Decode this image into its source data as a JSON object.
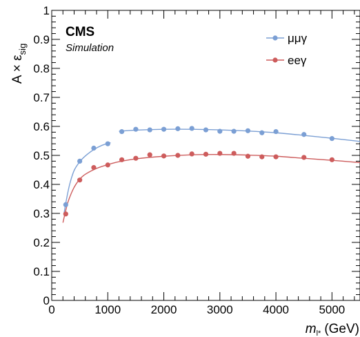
{
  "chart_data": {
    "type": "scatter",
    "experiment_label": "CMS",
    "sub_label": "Simulation",
    "ylabel": "A × ε",
    "ylabel_sub": "sig",
    "xlabel": "m",
    "xlabel_sub": "l*",
    "xlabel_unit": "(GeV)",
    "xlim": [
      0,
      5500
    ],
    "ylim": [
      0,
      1
    ],
    "x_ticks": [
      0,
      1000,
      2000,
      3000,
      4000,
      5000
    ],
    "y_ticks": [
      0,
      0.1,
      0.2,
      0.3,
      0.4,
      0.5,
      0.6,
      0.7,
      0.8,
      0.9,
      1
    ],
    "x_tick_labels": [
      "0",
      "1000",
      "2000",
      "3000",
      "4000",
      "5000"
    ],
    "y_tick_labels": [
      "0",
      "0.1",
      "0.2",
      "0.3",
      "0.4",
      "0.5",
      "0.6",
      "0.7",
      "0.8",
      "0.9",
      "1"
    ],
    "legend_position": "top-right",
    "series": [
      {
        "name": "μμγ",
        "color": "#7b9fd4",
        "points": [
          [
            250,
            0.33
          ],
          [
            500,
            0.48
          ],
          [
            750,
            0.525
          ],
          [
            1000,
            0.54
          ],
          [
            1250,
            0.582
          ],
          [
            1500,
            0.59
          ],
          [
            1750,
            0.588
          ],
          [
            2000,
            0.59
          ],
          [
            2250,
            0.592
          ],
          [
            2500,
            0.593
          ],
          [
            2750,
            0.588
          ],
          [
            3000,
            0.583
          ],
          [
            3250,
            0.583
          ],
          [
            3500,
            0.585
          ],
          [
            3750,
            0.578
          ],
          [
            4000,
            0.582
          ],
          [
            4500,
            0.572
          ],
          [
            5000,
            0.558
          ]
        ],
        "fit_segments": [
          [
            [
              220,
              0.3
            ],
            [
              260,
              0.345
            ],
            [
              320,
              0.4
            ],
            [
              400,
              0.448
            ],
            [
              500,
              0.478
            ],
            [
              600,
              0.498
            ],
            [
              750,
              0.52
            ],
            [
              900,
              0.535
            ],
            [
              1050,
              0.544
            ]
          ],
          [
            [
              1200,
              0.583
            ],
            [
              1500,
              0.587
            ],
            [
              2000,
              0.59
            ],
            [
              2500,
              0.59
            ],
            [
              3000,
              0.588
            ],
            [
              3500,
              0.584
            ],
            [
              4000,
              0.578
            ],
            [
              4500,
              0.569
            ],
            [
              5000,
              0.559
            ],
            [
              5500,
              0.548
            ]
          ]
        ]
      },
      {
        "name": "eeγ",
        "color": "#cd5c5c",
        "points": [
          [
            250,
            0.298
          ],
          [
            500,
            0.415
          ],
          [
            750,
            0.458
          ],
          [
            1000,
            0.467
          ],
          [
            1250,
            0.485
          ],
          [
            1500,
            0.49
          ],
          [
            1750,
            0.502
          ],
          [
            2000,
            0.498
          ],
          [
            2250,
            0.5
          ],
          [
            2500,
            0.505
          ],
          [
            2750,
            0.504
          ],
          [
            3000,
            0.507
          ],
          [
            3250,
            0.507
          ],
          [
            3500,
            0.497
          ],
          [
            3750,
            0.495
          ],
          [
            4000,
            0.495
          ],
          [
            4500,
            0.493
          ],
          [
            5000,
            0.485
          ]
        ],
        "fit_segments": [
          [
            [
              200,
              0.268
            ],
            [
              250,
              0.31
            ],
            [
              300,
              0.345
            ],
            [
              400,
              0.39
            ],
            [
              500,
              0.418
            ],
            [
              600,
              0.435
            ],
            [
              800,
              0.455
            ],
            [
              1000,
              0.468
            ],
            [
              1200,
              0.478
            ],
            [
              1500,
              0.488
            ],
            [
              2000,
              0.497
            ],
            [
              2500,
              0.502
            ],
            [
              3000,
              0.503
            ],
            [
              3500,
              0.501
            ],
            [
              4000,
              0.497
            ],
            [
              4500,
              0.49
            ],
            [
              5000,
              0.483
            ],
            [
              5500,
              0.475
            ]
          ]
        ]
      }
    ]
  }
}
